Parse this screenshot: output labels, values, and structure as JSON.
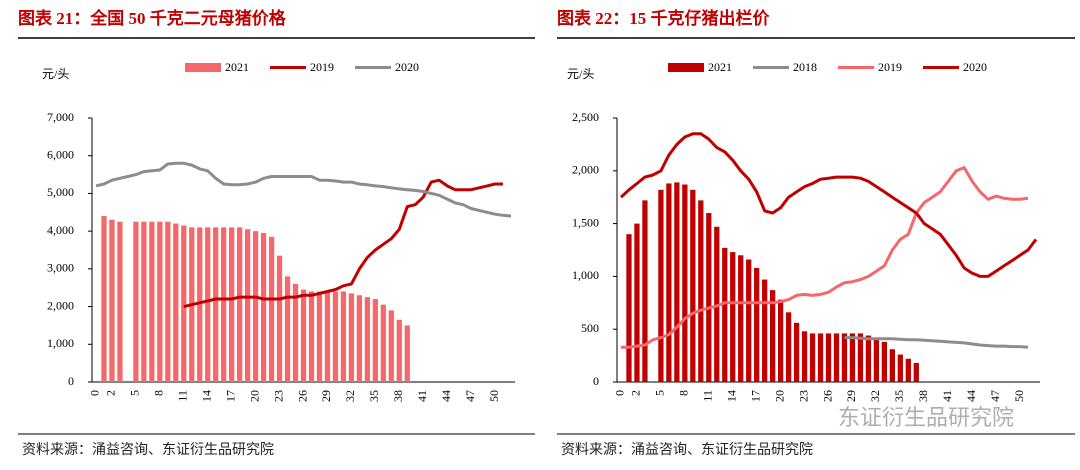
{
  "chart_data": [
    {
      "type": "combo",
      "title": "图表 21：全国 50 千克二元母猪价格",
      "y_label": "元/头",
      "source": "资料来源：涌益咨询、东证衍生品研究院",
      "categories": [
        "0",
        null,
        "2",
        null,
        null,
        "5",
        null,
        null,
        "8",
        null,
        null,
        "11",
        null,
        null,
        "14",
        null,
        null,
        "17",
        null,
        null,
        "20",
        null,
        null,
        "23",
        null,
        null,
        "26",
        null,
        null,
        "29",
        null,
        null,
        "32",
        null,
        null,
        "35",
        null,
        null,
        "38",
        null,
        null,
        "41",
        null,
        null,
        "44",
        null,
        null,
        "47",
        null,
        null,
        "50",
        null,
        null
      ],
      "ylim": [
        0,
        7000
      ],
      "yticks": [
        0,
        {
          "value": 1000,
          "label": "1,000"
        },
        {
          "value": 2000,
          "label": "2,000"
        },
        {
          "value": 3000,
          "label": "3,000"
        },
        {
          "value": 4000,
          "label": "4,000"
        },
        {
          "value": 5000,
          "label": "5,000"
        },
        {
          "value": 6000,
          "label": "6,000"
        },
        {
          "value": 7000,
          "label": "7,000"
        }
      ],
      "series": [
        {
          "name": "2021",
          "type": "bar",
          "color": "#f4676b",
          "values": [
            null,
            4400,
            4300,
            4250,
            null,
            4250,
            4250,
            4250,
            4250,
            4250,
            4200,
            4150,
            4100,
            4100,
            4100,
            4100,
            4100,
            4100,
            4100,
            4050,
            4000,
            3950,
            3850,
            3350,
            2800,
            2600,
            2450,
            2400,
            2400,
            2400,
            2400,
            2400,
            2350,
            2300,
            2250,
            2200,
            2050,
            1900,
            1650,
            1500,
            null,
            null,
            null,
            null,
            null,
            null,
            null,
            null,
            null,
            null,
            null,
            null,
            null
          ]
        },
        {
          "name": "2019",
          "type": "line",
          "color": "#c00000",
          "values": [
            null,
            null,
            null,
            null,
            null,
            null,
            null,
            null,
            null,
            null,
            null,
            2000,
            2050,
            2100,
            2150,
            2200,
            2200,
            2200,
            2250,
            2250,
            2250,
            2200,
            2200,
            2200,
            2250,
            2250,
            2300,
            2300,
            2350,
            2400,
            2450,
            2550,
            2600,
            3000,
            3300,
            3500,
            3650,
            3800,
            4050,
            4650,
            4700,
            4900,
            5300,
            5350,
            5200,
            5100,
            5100,
            5100,
            5150,
            5200,
            5250,
            5250,
            null
          ]
        },
        {
          "name": "2020",
          "type": "line",
          "color": "#8c8c8c",
          "values": [
            5200,
            5250,
            5350,
            5400,
            5450,
            5500,
            5580,
            5600,
            5620,
            5780,
            5800,
            5800,
            5750,
            5650,
            5600,
            5400,
            5250,
            5230,
            5230,
            5250,
            5300,
            5400,
            5450,
            5450,
            5450,
            5450,
            5450,
            5450,
            5350,
            5350,
            5330,
            5300,
            5300,
            5250,
            5230,
            5200,
            5180,
            5150,
            5120,
            5100,
            5080,
            5050,
            5000,
            4950,
            4850,
            4750,
            4700,
            4600,
            4550,
            4500,
            4450,
            4420,
            4400
          ]
        }
      ]
    },
    {
      "type": "combo",
      "title": "图表 22：15 千克仔猪出栏价",
      "y_label": "元/头",
      "source": "资料来源：涌益咨询、东证衍生品研究院",
      "categories": [
        "0",
        null,
        "2",
        null,
        null,
        "5",
        null,
        null,
        "8",
        null,
        null,
        "11",
        null,
        null,
        "14",
        null,
        null,
        "17",
        null,
        null,
        "20",
        null,
        null,
        "23",
        null,
        null,
        "26",
        null,
        null,
        "29",
        null,
        null,
        "32",
        null,
        null,
        "35",
        null,
        null,
        "38",
        null,
        null,
        "41",
        null,
        null,
        "44",
        null,
        null,
        "47",
        null,
        null,
        "50",
        null,
        null
      ],
      "ylim": [
        0,
        2500
      ],
      "yticks": [
        0,
        500,
        {
          "value": 1000,
          "label": "1,000"
        },
        {
          "value": 1500,
          "label": "1,500"
        },
        {
          "value": 2000,
          "label": "2,000"
        },
        {
          "value": 2500,
          "label": "2,500"
        }
      ],
      "series": [
        {
          "name": "2021",
          "type": "bar",
          "color": "#c00000",
          "values": [
            null,
            1400,
            1500,
            1720,
            null,
            1820,
            1880,
            1890,
            1870,
            1820,
            1720,
            1600,
            1470,
            1270,
            1230,
            1200,
            1160,
            1080,
            970,
            870,
            780,
            660,
            560,
            480,
            460,
            460,
            460,
            460,
            460,
            460,
            460,
            440,
            400,
            380,
            310,
            260,
            220,
            180,
            null,
            null,
            null,
            null,
            null,
            null,
            null,
            null,
            null,
            null,
            null,
            null,
            null,
            null,
            null
          ]
        },
        {
          "name": "2018",
          "type": "line",
          "color": "#8c8c8c",
          "values": [
            null,
            null,
            null,
            null,
            null,
            null,
            null,
            null,
            null,
            null,
            null,
            null,
            null,
            null,
            null,
            null,
            null,
            null,
            null,
            null,
            null,
            null,
            null,
            null,
            null,
            null,
            null,
            null,
            420,
            420,
            415,
            410,
            410,
            410,
            410,
            405,
            400,
            400,
            395,
            390,
            385,
            380,
            375,
            370,
            360,
            350,
            345,
            340,
            340,
            335,
            335,
            330,
            null
          ]
        },
        {
          "name": "2019",
          "type": "line",
          "color": "#f4676b",
          "values": [
            330,
            330,
            340,
            350,
            400,
            420,
            450,
            520,
            600,
            650,
            680,
            700,
            720,
            750,
            750,
            750,
            750,
            750,
            750,
            750,
            760,
            780,
            820,
            830,
            820,
            830,
            850,
            900,
            940,
            950,
            970,
            1000,
            1050,
            1100,
            1250,
            1350,
            1400,
            1600,
            1700,
            1750,
            1800,
            1900,
            2000,
            2030,
            1900,
            1800,
            1730,
            1760,
            1740,
            1730,
            1730,
            1740,
            null
          ]
        },
        {
          "name": "2020",
          "type": "line",
          "color": "#c00000",
          "values": [
            1750,
            1820,
            1880,
            1940,
            1960,
            2000,
            2150,
            2250,
            2320,
            2350,
            2350,
            2300,
            2220,
            2180,
            2100,
            2000,
            1920,
            1800,
            1620,
            1600,
            1650,
            1750,
            1800,
            1850,
            1880,
            1920,
            1930,
            1940,
            1940,
            1940,
            1930,
            1900,
            1850,
            1800,
            1750,
            1700,
            1650,
            1600,
            1500,
            1450,
            1400,
            1300,
            1200,
            1080,
            1030,
            1000,
            1000,
            1050,
            1100,
            1150,
            1200,
            1250,
            1350
          ]
        }
      ]
    }
  ],
  "watermark": "东证衍生品研究院"
}
